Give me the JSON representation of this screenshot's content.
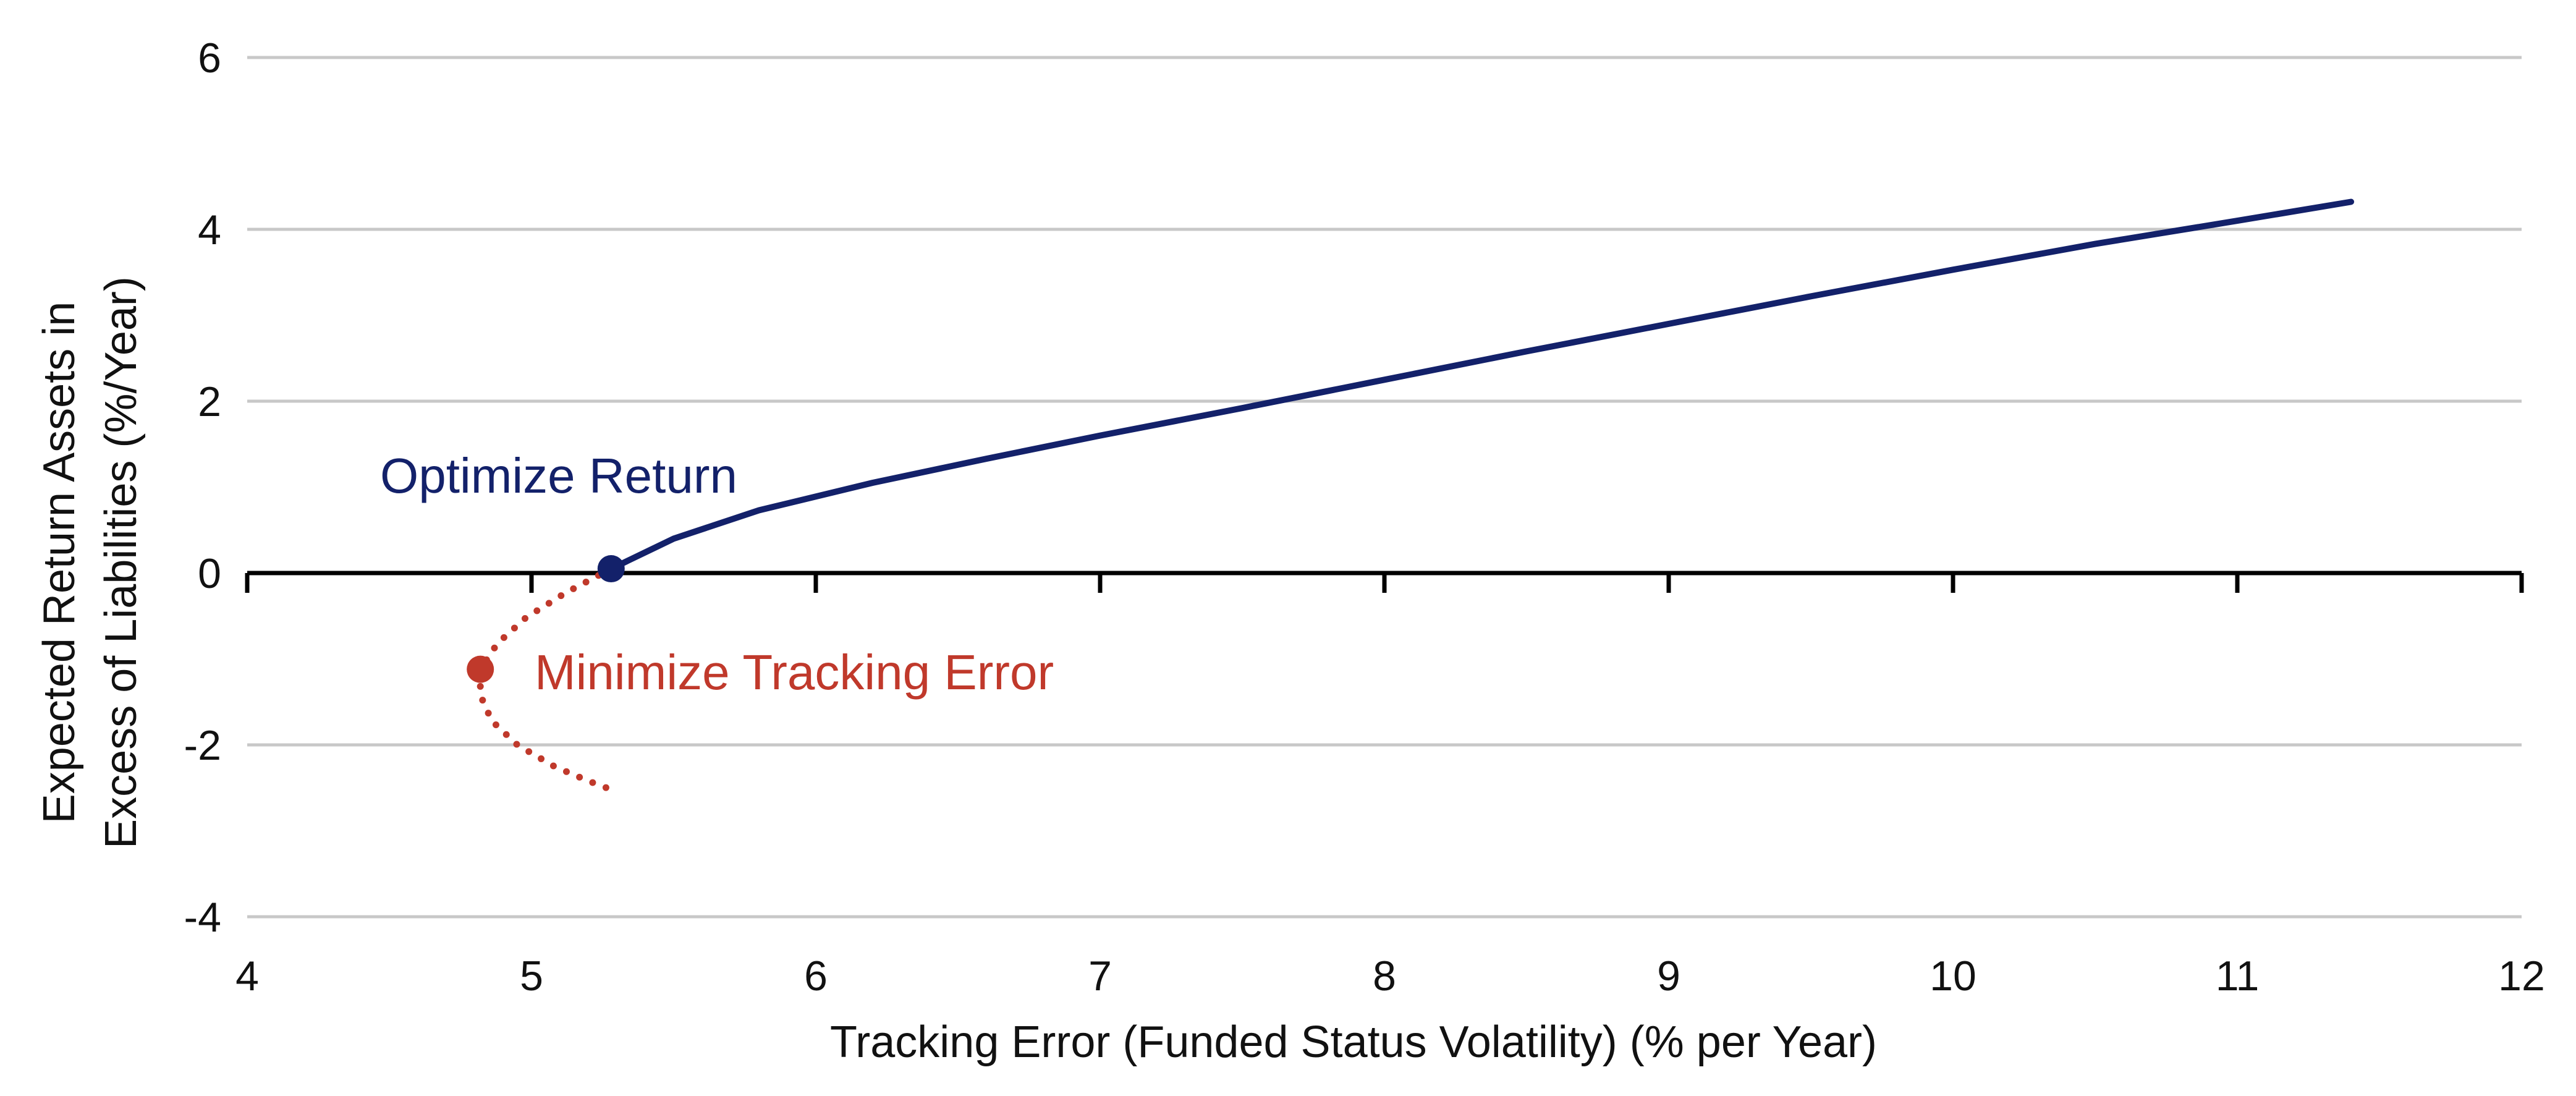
{
  "chart_data": {
    "type": "line",
    "xlabel": "Tracking Error (Funded Status Volatility) (% per Year)",
    "ylabel": [
      "Expected Return Assets in",
      "Excess of Liabilities (%/Year)"
    ],
    "xlim": [
      4,
      12
    ],
    "ylim": [
      -4,
      6
    ],
    "xticks": [
      "4",
      "5",
      "6",
      "7",
      "8",
      "9",
      "10",
      "11",
      "12"
    ],
    "yticks": [
      "6",
      "4",
      "2",
      "0",
      "-2",
      "-4"
    ],
    "grid": "horizontal",
    "colors": {
      "optimize": "#13216a",
      "minimize": "#c0392b",
      "grid": "#c8c8c8",
      "axis": "#000000"
    },
    "series": [
      {
        "style": "solid",
        "x": [
          5.28,
          5.5,
          5.8,
          6.2,
          6.6,
          7.0,
          7.5,
          8.0,
          8.5,
          9.0,
          9.5,
          10.0,
          10.5,
          11.0,
          11.4
        ],
        "y": [
          0.05,
          0.4,
          0.73,
          1.05,
          1.33,
          1.6,
          1.92,
          2.25,
          2.58,
          2.9,
          3.22,
          3.53,
          3.83,
          4.1,
          4.32
        ]
      },
      {
        "style": "dotted",
        "x": [
          5.28,
          5.12,
          4.98,
          4.88,
          4.82,
          4.82,
          4.86,
          4.95,
          5.08,
          5.2,
          5.28
        ],
        "y": [
          0.05,
          -0.23,
          -0.52,
          -0.82,
          -1.12,
          -1.42,
          -1.72,
          -2.0,
          -2.25,
          -2.42,
          -2.52
        ]
      }
    ],
    "points": [
      {
        "label": "Optimize Return",
        "x": 5.28,
        "y": 0.05,
        "color": "#13216a"
      },
      {
        "label": "Minimize Tracking Error",
        "x": 4.82,
        "y": -1.12,
        "color": "#c0392b"
      }
    ]
  }
}
